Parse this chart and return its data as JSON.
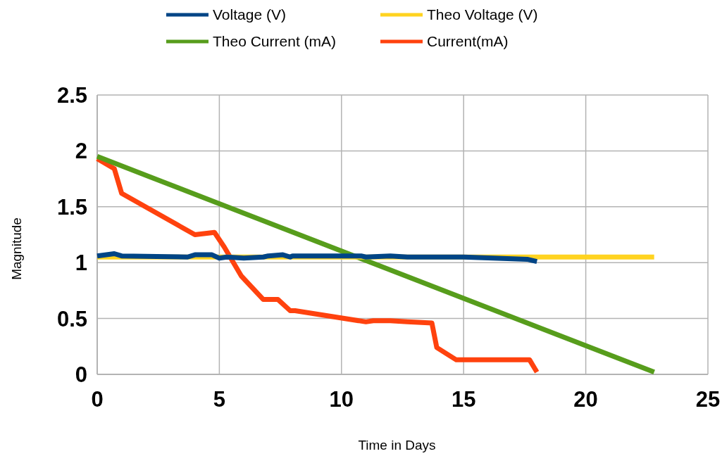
{
  "chart_data": {
    "type": "line",
    "xlabel": "Time in Days",
    "ylabel": "Magnitude",
    "xlim": [
      0,
      25
    ],
    "xticks": [
      0,
      5,
      10,
      15,
      20,
      25
    ],
    "ylim": [
      0,
      2.5
    ],
    "yticks": [
      0,
      0.5,
      1,
      1.5,
      2,
      2.5
    ],
    "grid": true,
    "legend": "top",
    "marker": "none",
    "line_style": "solid",
    "series": [
      {
        "name": "Voltage (V)",
        "color": "#004586",
        "x": [
          0,
          0.7,
          1,
          3.7,
          4,
          4.7,
          5,
          5.3,
          6,
          6.8,
          7,
          7.6,
          7.9,
          8,
          10.8,
          11,
          12,
          12.7,
          15,
          17.6,
          18
        ],
        "values": [
          1.06,
          1.08,
          1.06,
          1.05,
          1.07,
          1.07,
          1.04,
          1.05,
          1.04,
          1.05,
          1.06,
          1.07,
          1.05,
          1.06,
          1.06,
          1.05,
          1.06,
          1.05,
          1.05,
          1.03,
          1.01
        ]
      },
      {
        "name": "Theo Voltage (V)",
        "color": "#ffd320",
        "x": [
          0,
          22.8
        ],
        "values": [
          1.05,
          1.05
        ]
      },
      {
        "name": "Theo Current (mA)",
        "color": "#579d1c",
        "x": [
          0,
          22.8
        ],
        "values": [
          1.95,
          0.02
        ]
      },
      {
        "name": "Current(mA)",
        "color": "#ff420e",
        "x": [
          0,
          0.7,
          1,
          4,
          4.8,
          5.2,
          5.9,
          6.8,
          7.4,
          7.9,
          8.1,
          11,
          11.3,
          12,
          12.7,
          13.7,
          13.9,
          14.7,
          17.7,
          18
        ],
        "values": [
          1.93,
          1.84,
          1.62,
          1.25,
          1.27,
          1.14,
          0.88,
          0.67,
          0.67,
          0.57,
          0.57,
          0.47,
          0.48,
          0.48,
          0.47,
          0.46,
          0.24,
          0.13,
          0.13,
          0.02
        ]
      }
    ]
  }
}
